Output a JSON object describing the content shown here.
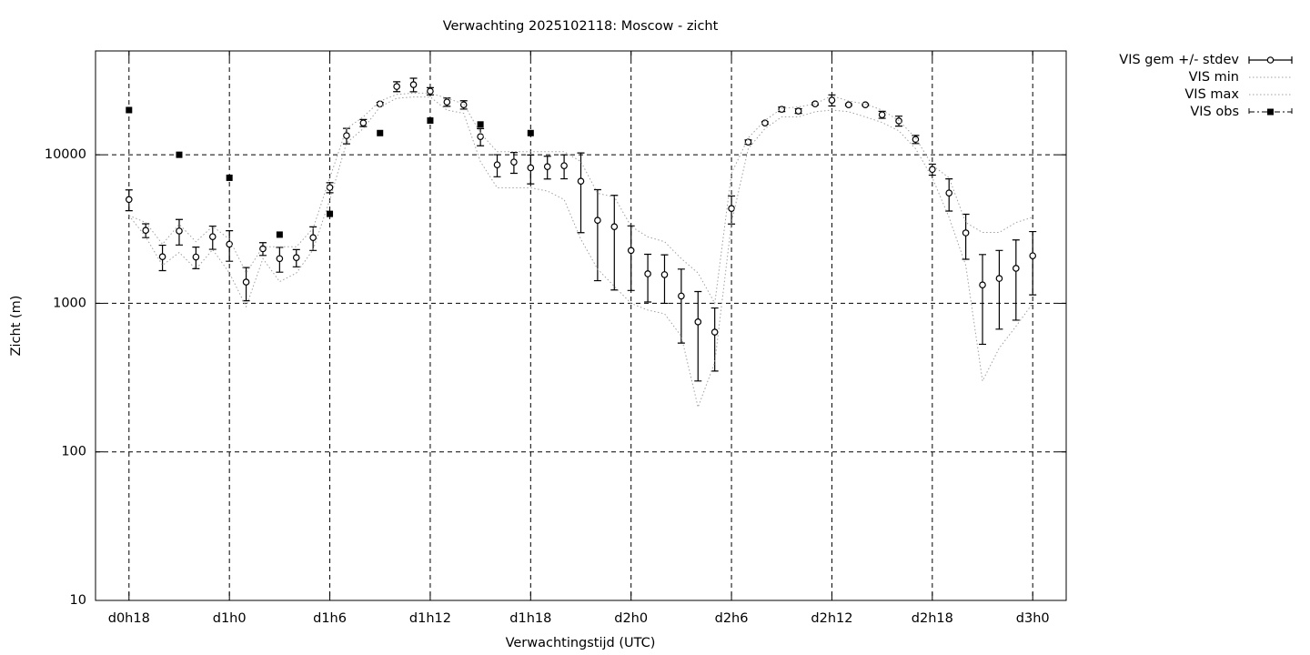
{
  "chart_data": {
    "type": "line",
    "title": "Verwachting 2025102118: Moscow - zicht",
    "x_label": "Verwachtingstijd (UTC)",
    "y_label": "Zicht (m)",
    "x": [
      18,
      19,
      20,
      21,
      22,
      23,
      24,
      25,
      26,
      27,
      28,
      29,
      30,
      31,
      32,
      33,
      34,
      35,
      36,
      37,
      38,
      39,
      40,
      41,
      42,
      43,
      44,
      45,
      46,
      47,
      48,
      49,
      50,
      51,
      52,
      53,
      54,
      55,
      56,
      57,
      58,
      59,
      60,
      61,
      62,
      63,
      64,
      65,
      66,
      67,
      68,
      69,
      70,
      71,
      72
    ],
    "xlim": [
      16,
      74
    ],
    "xticks": [
      {
        "value": 18,
        "label": "d0h18"
      },
      {
        "value": 24,
        "label": "d1h0"
      },
      {
        "value": 30,
        "label": "d1h6"
      },
      {
        "value": 36,
        "label": "d1h12"
      },
      {
        "value": 42,
        "label": "d1h18"
      },
      {
        "value": 48,
        "label": "d2h0"
      },
      {
        "value": 54,
        "label": "d2h6"
      },
      {
        "value": 60,
        "label": "d2h12"
      },
      {
        "value": 66,
        "label": "d2h18"
      },
      {
        "value": 72,
        "label": "d3h0"
      }
    ],
    "ylim": [
      10,
      50000
    ],
    "yticks": [
      10,
      100,
      1000,
      10000
    ],
    "log_y": true,
    "grid": true,
    "legend": "outside-top-right",
    "series": [
      {
        "name": "VIS gem +/- stdev",
        "color": "#000000",
        "style": "errorbar",
        "values": [
          5000,
          3100,
          2060,
          3070,
          2050,
          2810,
          2500,
          1390,
          2330,
          2000,
          2030,
          2770,
          6020,
          13450,
          16380,
          22000,
          28800,
          29650,
          26800,
          22650,
          21700,
          13250,
          8560,
          8930,
          8170,
          8320,
          8440,
          6640,
          3620,
          3280,
          2270,
          1580,
          1560,
          1120,
          750,
          640,
          4350,
          12180,
          16380,
          20240,
          19700,
          22000,
          23300,
          21700,
          21700,
          18600,
          16900,
          12700,
          7970,
          5530,
          2980,
          1330,
          1470,
          1720,
          2090
        ],
        "stdev": [
          800,
          330,
          400,
          600,
          340,
          500,
          580,
          350,
          230,
          380,
          270,
          500,
          470,
          1600,
          900,
          500,
          2200,
          3100,
          1500,
          1450,
          1400,
          1750,
          1450,
          1430,
          1800,
          1450,
          1550,
          3650,
          2200,
          2050,
          1050,
          560,
          560,
          580,
          450,
          290,
          930,
          400,
          300,
          700,
          700,
          400,
          2000,
          300,
          300,
          1000,
          1300,
          800,
          680,
          1350,
          1000,
          800,
          800,
          950,
          950
        ]
      },
      {
        "name": "VIS min",
        "color": "#a0a0a0",
        "style": "dotted",
        "values": [
          3900,
          2800,
          1800,
          2200,
          1700,
          2300,
          1600,
          950,
          2000,
          1400,
          1600,
          2300,
          5000,
          12000,
          15000,
          21000,
          24000,
          24500,
          24500,
          20000,
          19000,
          9000,
          6000,
          6000,
          6000,
          5700,
          5000,
          2700,
          1700,
          1300,
          1000,
          900,
          850,
          600,
          200,
          400,
          3500,
          11000,
          15000,
          18000,
          18000,
          19500,
          20000,
          19500,
          18000,
          16500,
          14500,
          11000,
          7000,
          3800,
          1800,
          300,
          500,
          700,
          1000
        ]
      },
      {
        "name": "VIS max",
        "color": "#a0a0a0",
        "style": "dotted",
        "values": [
          3900,
          3500,
          2500,
          3400,
          2600,
          3300,
          2700,
          1600,
          2400,
          2400,
          2400,
          3200,
          7000,
          15000,
          18000,
          23000,
          25500,
          26000,
          26000,
          24000,
          22000,
          14000,
          10500,
          10500,
          10500,
          10500,
          10500,
          9000,
          5500,
          5200,
          3300,
          2800,
          2600,
          2000,
          1600,
          1000,
          7500,
          13000,
          17000,
          20500,
          21000,
          22000,
          25000,
          23000,
          22000,
          20000,
          17000,
          13000,
          8500,
          7000,
          3500,
          3000,
          3000,
          3500,
          3800
        ]
      },
      {
        "name": "VIS obs",
        "color": "#000000",
        "style": "points",
        "values": [
          20000,
          null,
          null,
          10000,
          null,
          null,
          7000,
          null,
          null,
          2900,
          null,
          null,
          4000,
          null,
          null,
          14000,
          null,
          null,
          17000,
          null,
          null,
          16000,
          null,
          null,
          14000,
          null,
          null,
          null,
          null,
          null,
          null,
          null,
          null,
          null,
          null,
          null,
          null,
          null,
          null,
          null,
          null,
          null,
          null,
          null,
          null,
          null,
          null,
          null,
          null,
          null,
          null,
          null,
          null,
          null,
          null
        ]
      }
    ]
  }
}
